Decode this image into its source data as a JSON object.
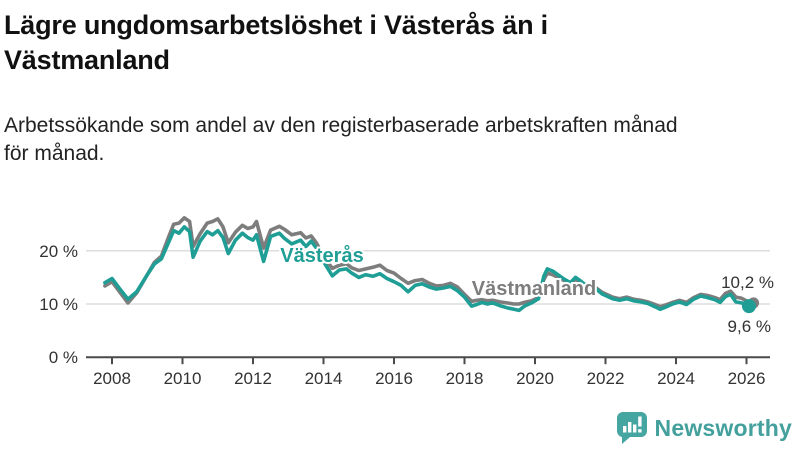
{
  "header": {
    "title_lines": [
      "Lägre ungdomsarbetslöshet i Västerås än i",
      "Västmanland"
    ],
    "subtitle_lines": [
      "Arbetssökande som andel av den registerbaserade arbetskraften månad",
      "för månad."
    ]
  },
  "chart_data": {
    "type": "line",
    "title": "Lägre ungdomsarbetslöshet i Västerås än i Västmanland",
    "subtitle": "Arbetssökande som andel av den registerbaserade arbetskraften månad för månad.",
    "unit": "%",
    "xlim": [
      2007.7,
      2026.7
    ],
    "ylim": [
      0,
      28
    ],
    "grid": "horizontal",
    "legend_position": "inline-labels",
    "y_ticks": [
      {
        "value": 0,
        "label": "0 %"
      },
      {
        "value": 10,
        "label": "10 %"
      },
      {
        "value": 20,
        "label": "20 %"
      }
    ],
    "x_ticks": [
      {
        "value": 2008,
        "label": "2008"
      },
      {
        "value": 2010,
        "label": "2010"
      },
      {
        "value": 2012,
        "label": "2012"
      },
      {
        "value": 2014,
        "label": "2014"
      },
      {
        "value": 2016,
        "label": "2016"
      },
      {
        "value": 2018,
        "label": "2018"
      },
      {
        "value": 2020,
        "label": "2020"
      },
      {
        "value": 2022,
        "label": "2022"
      },
      {
        "value": 2024,
        "label": "2024"
      },
      {
        "value": 2026,
        "label": "2026"
      }
    ],
    "series": [
      {
        "name": "Västerås",
        "color": "#1f9e96",
        "end_label": "9,6 %",
        "end_value": 9.6,
        "points": [
          [
            2007.8,
            14.0
          ],
          [
            2008.0,
            14.8
          ],
          [
            2008.2,
            13.0
          ],
          [
            2008.45,
            10.9
          ],
          [
            2008.7,
            12.3
          ],
          [
            2009.0,
            15.5
          ],
          [
            2009.2,
            17.5
          ],
          [
            2009.4,
            18.5
          ],
          [
            2009.6,
            21.5
          ],
          [
            2009.75,
            23.8
          ],
          [
            2009.9,
            23.3
          ],
          [
            2010.05,
            24.5
          ],
          [
            2010.2,
            23.6
          ],
          [
            2010.3,
            18.8
          ],
          [
            2010.5,
            21.8
          ],
          [
            2010.7,
            23.6
          ],
          [
            2010.85,
            23.0
          ],
          [
            2011.0,
            23.8
          ],
          [
            2011.15,
            22.5
          ],
          [
            2011.3,
            19.5
          ],
          [
            2011.5,
            22.0
          ],
          [
            2011.7,
            23.3
          ],
          [
            2011.85,
            22.5
          ],
          [
            2012.0,
            22.0
          ],
          [
            2012.1,
            23.0
          ],
          [
            2012.3,
            18.0
          ],
          [
            2012.5,
            22.7
          ],
          [
            2012.75,
            23.3
          ],
          [
            2012.9,
            22.3
          ],
          [
            2013.1,
            21.3
          ],
          [
            2013.35,
            22.0
          ],
          [
            2013.5,
            20.8
          ],
          [
            2013.65,
            21.8
          ],
          [
            2013.8,
            20.5
          ],
          [
            2014.0,
            18.0
          ],
          [
            2014.25,
            15.3
          ],
          [
            2014.45,
            16.4
          ],
          [
            2014.65,
            16.6
          ],
          [
            2014.8,
            15.8
          ],
          [
            2015.0,
            15.0
          ],
          [
            2015.2,
            15.5
          ],
          [
            2015.4,
            15.2
          ],
          [
            2015.6,
            15.7
          ],
          [
            2015.8,
            14.8
          ],
          [
            2016.0,
            14.2
          ],
          [
            2016.2,
            13.5
          ],
          [
            2016.4,
            12.3
          ],
          [
            2016.6,
            13.5
          ],
          [
            2016.8,
            13.8
          ],
          [
            2017.0,
            13.2
          ],
          [
            2017.2,
            12.8
          ],
          [
            2017.4,
            13.0
          ],
          [
            2017.6,
            13.3
          ],
          [
            2017.8,
            12.5
          ],
          [
            2018.0,
            11.3
          ],
          [
            2018.2,
            9.6
          ],
          [
            2018.35,
            9.9
          ],
          [
            2018.5,
            10.3
          ],
          [
            2018.65,
            10.0
          ],
          [
            2018.8,
            10.2
          ],
          [
            2019.0,
            9.7
          ],
          [
            2019.2,
            9.3
          ],
          [
            2019.4,
            9.0
          ],
          [
            2019.55,
            8.8
          ],
          [
            2019.7,
            9.6
          ],
          [
            2019.9,
            10.2
          ],
          [
            2020.1,
            11.0
          ],
          [
            2020.25,
            15.2
          ],
          [
            2020.35,
            16.6
          ],
          [
            2020.5,
            16.2
          ],
          [
            2020.65,
            15.5
          ],
          [
            2020.8,
            14.8
          ],
          [
            2021.0,
            14.0
          ],
          [
            2021.15,
            15.0
          ],
          [
            2021.3,
            14.3
          ],
          [
            2021.5,
            13.2
          ],
          [
            2021.7,
            13.0
          ],
          [
            2021.9,
            11.9
          ],
          [
            2022.0,
            11.6
          ],
          [
            2022.2,
            11.0
          ],
          [
            2022.4,
            10.7
          ],
          [
            2022.6,
            11.0
          ],
          [
            2022.8,
            10.6
          ],
          [
            2023.0,
            10.4
          ],
          [
            2023.2,
            10.1
          ],
          [
            2023.4,
            9.5
          ],
          [
            2023.55,
            9.0
          ],
          [
            2023.7,
            9.4
          ],
          [
            2023.9,
            10.0
          ],
          [
            2024.1,
            10.4
          ],
          [
            2024.3,
            9.9
          ],
          [
            2024.5,
            10.9
          ],
          [
            2024.7,
            11.5
          ],
          [
            2024.9,
            11.2
          ],
          [
            2025.1,
            10.8
          ],
          [
            2025.25,
            10.3
          ],
          [
            2025.4,
            11.4
          ],
          [
            2025.55,
            11.8
          ],
          [
            2025.7,
            10.4
          ],
          [
            2025.85,
            10.2
          ],
          [
            2026.0,
            9.9
          ],
          [
            2026.07,
            9.6
          ]
        ]
      },
      {
        "name": "Västmanland",
        "color": "#7d7d7d",
        "end_label": "10,2 %",
        "end_value": 10.2,
        "points": [
          [
            2007.8,
            13.4
          ],
          [
            2008.0,
            14.2
          ],
          [
            2008.2,
            12.4
          ],
          [
            2008.45,
            10.2
          ],
          [
            2008.7,
            12.1
          ],
          [
            2009.0,
            15.5
          ],
          [
            2009.2,
            17.8
          ],
          [
            2009.4,
            19.0
          ],
          [
            2009.6,
            22.5
          ],
          [
            2009.75,
            25.0
          ],
          [
            2009.9,
            25.2
          ],
          [
            2010.05,
            26.2
          ],
          [
            2010.2,
            25.5
          ],
          [
            2010.3,
            20.8
          ],
          [
            2010.5,
            23.2
          ],
          [
            2010.7,
            25.2
          ],
          [
            2010.85,
            25.5
          ],
          [
            2011.0,
            26.0
          ],
          [
            2011.15,
            24.5
          ],
          [
            2011.3,
            21.5
          ],
          [
            2011.5,
            23.5
          ],
          [
            2011.7,
            24.8
          ],
          [
            2011.85,
            24.2
          ],
          [
            2012.0,
            24.5
          ],
          [
            2012.1,
            25.5
          ],
          [
            2012.3,
            20.5
          ],
          [
            2012.5,
            23.9
          ],
          [
            2012.75,
            24.6
          ],
          [
            2012.9,
            24.0
          ],
          [
            2013.1,
            23.0
          ],
          [
            2013.35,
            23.4
          ],
          [
            2013.5,
            22.4
          ],
          [
            2013.65,
            22.8
          ],
          [
            2013.8,
            21.5
          ],
          [
            2014.0,
            19.0
          ],
          [
            2014.25,
            16.7
          ],
          [
            2014.45,
            17.3
          ],
          [
            2014.65,
            17.6
          ],
          [
            2014.8,
            16.8
          ],
          [
            2015.0,
            16.3
          ],
          [
            2015.2,
            16.6
          ],
          [
            2015.4,
            16.9
          ],
          [
            2015.6,
            17.3
          ],
          [
            2015.8,
            16.3
          ],
          [
            2016.0,
            15.8
          ],
          [
            2016.2,
            14.8
          ],
          [
            2016.4,
            13.9
          ],
          [
            2016.6,
            14.4
          ],
          [
            2016.8,
            14.6
          ],
          [
            2017.0,
            13.9
          ],
          [
            2017.2,
            13.4
          ],
          [
            2017.4,
            13.5
          ],
          [
            2017.6,
            13.9
          ],
          [
            2017.8,
            13.2
          ],
          [
            2018.0,
            11.8
          ],
          [
            2018.2,
            10.5
          ],
          [
            2018.35,
            10.7
          ],
          [
            2018.5,
            10.8
          ],
          [
            2018.65,
            10.6
          ],
          [
            2018.8,
            10.7
          ],
          [
            2019.0,
            10.4
          ],
          [
            2019.2,
            10.2
          ],
          [
            2019.4,
            10.0
          ],
          [
            2019.55,
            10.0
          ],
          [
            2019.7,
            10.3
          ],
          [
            2019.9,
            10.6
          ],
          [
            2020.1,
            11.2
          ],
          [
            2020.25,
            14.6
          ],
          [
            2020.35,
            15.8
          ],
          [
            2020.5,
            15.5
          ],
          [
            2020.65,
            15.0
          ],
          [
            2020.8,
            14.5
          ],
          [
            2021.0,
            14.0
          ],
          [
            2021.15,
            14.6
          ],
          [
            2021.3,
            14.1
          ],
          [
            2021.5,
            13.4
          ],
          [
            2021.7,
            13.2
          ],
          [
            2021.9,
            12.2
          ],
          [
            2022.0,
            11.9
          ],
          [
            2022.2,
            11.3
          ],
          [
            2022.4,
            11.0
          ],
          [
            2022.6,
            11.3
          ],
          [
            2022.8,
            10.9
          ],
          [
            2023.0,
            10.7
          ],
          [
            2023.2,
            10.4
          ],
          [
            2023.4,
            9.9
          ],
          [
            2023.55,
            9.5
          ],
          [
            2023.7,
            9.8
          ],
          [
            2023.9,
            10.3
          ],
          [
            2024.1,
            10.7
          ],
          [
            2024.3,
            10.3
          ],
          [
            2024.5,
            11.2
          ],
          [
            2024.7,
            11.8
          ],
          [
            2024.9,
            11.6
          ],
          [
            2025.1,
            11.2
          ],
          [
            2025.25,
            10.8
          ],
          [
            2025.4,
            12.0
          ],
          [
            2025.55,
            12.4
          ],
          [
            2025.7,
            11.3
          ],
          [
            2025.85,
            11.1
          ],
          [
            2026.0,
            10.6
          ],
          [
            2026.2,
            10.2
          ]
        ]
      }
    ]
  },
  "branding": {
    "name": "Newsworthy",
    "color": "#43a09c"
  }
}
